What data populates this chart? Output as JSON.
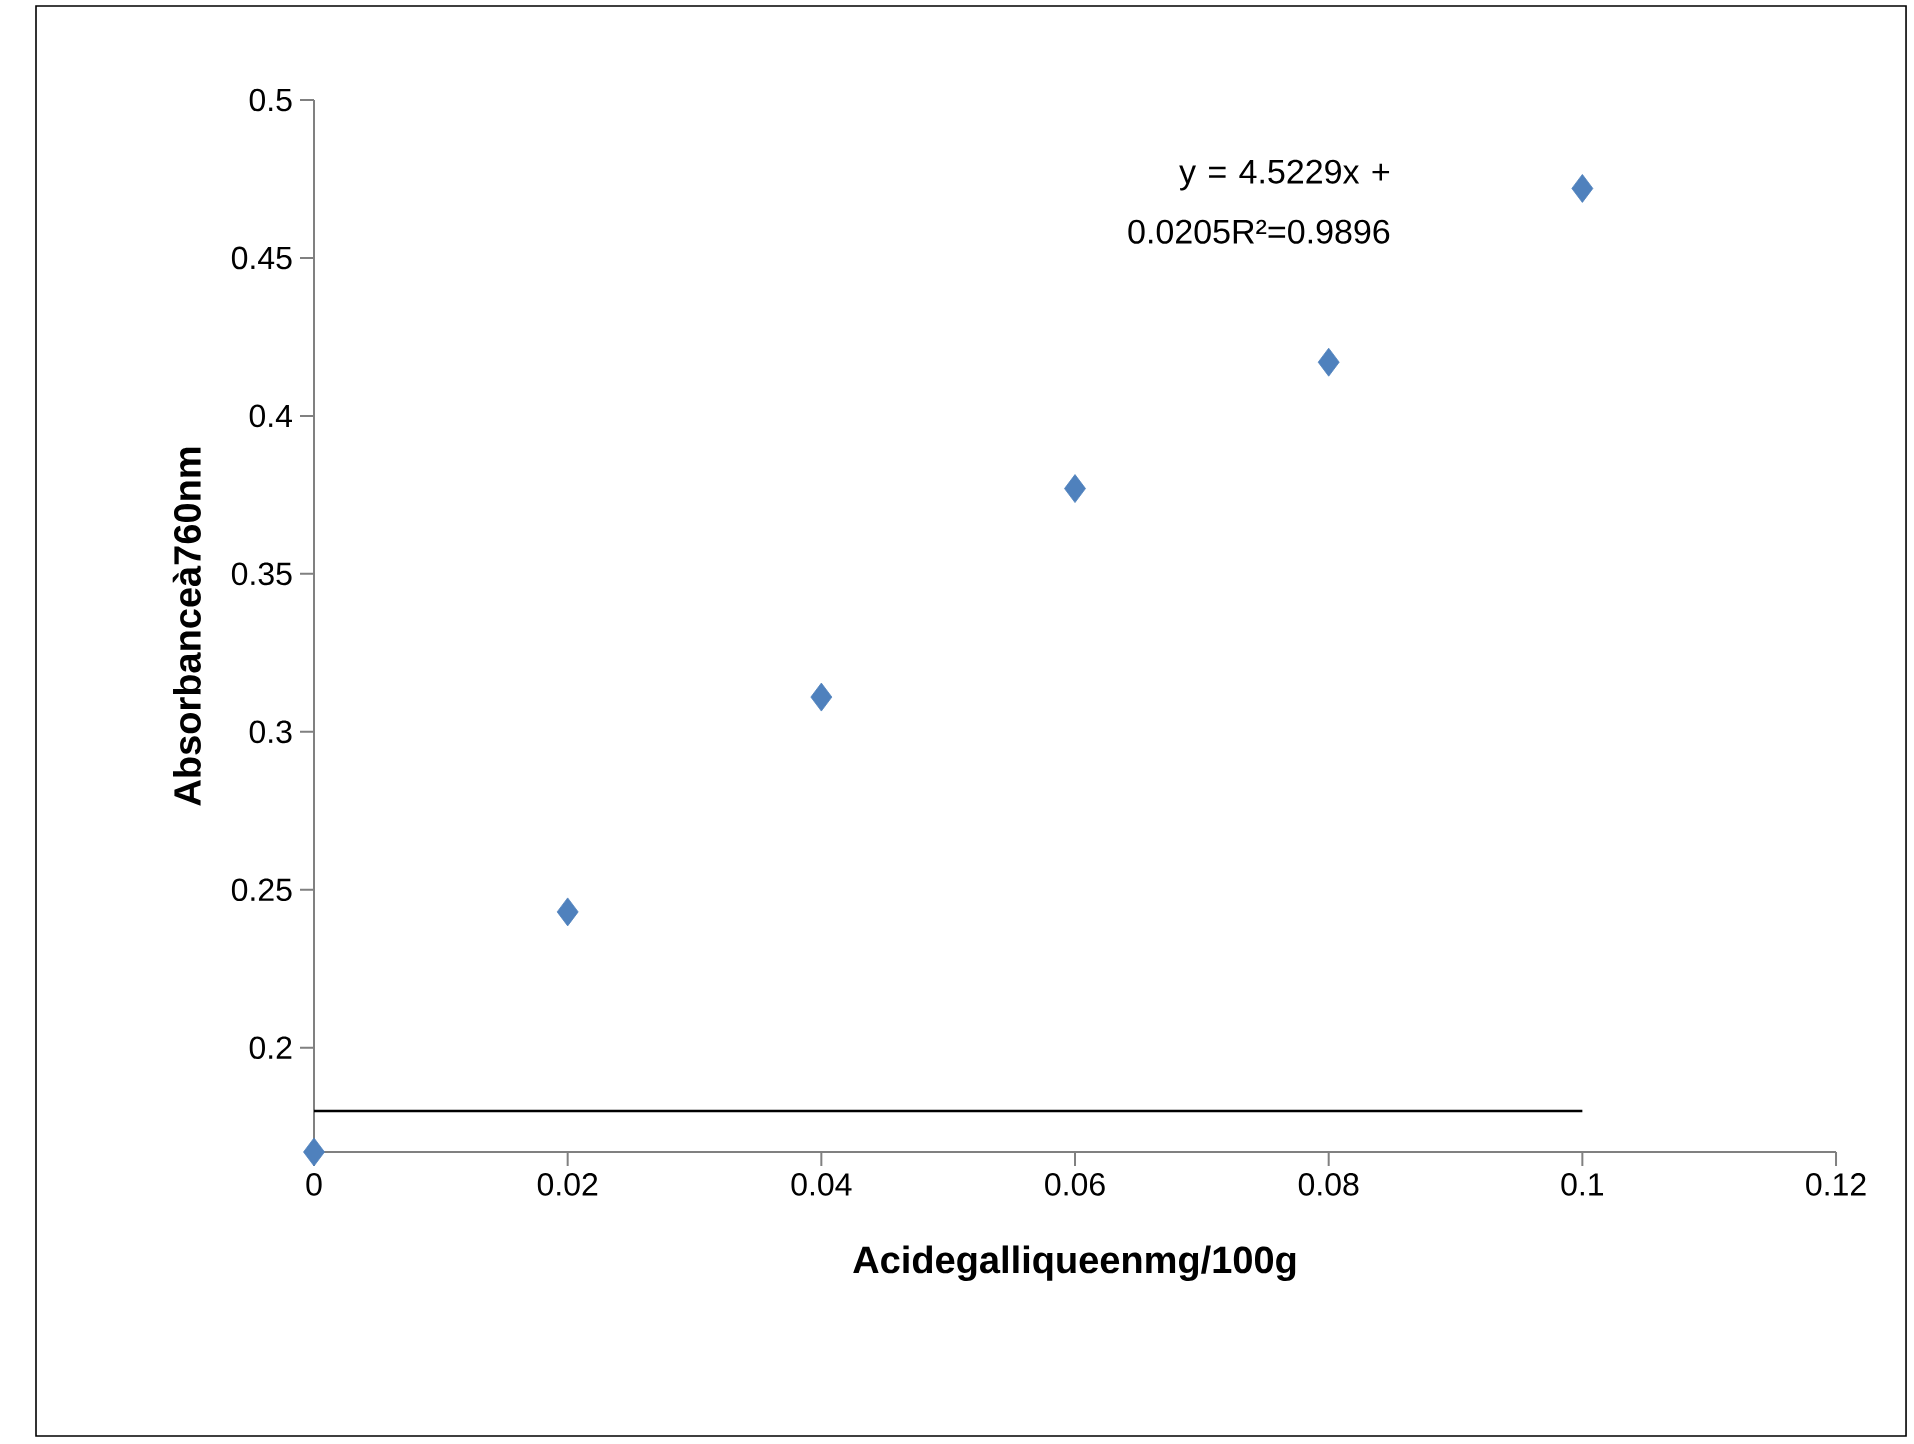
{
  "chart_data": {
    "type": "scatter",
    "xlabel": "Acidegalliqueenmg/100g",
    "ylabel": "Absorbanceà760nm",
    "x": [
      0,
      0.02,
      0.04,
      0.06,
      0.08,
      0.1
    ],
    "series": [
      {
        "color": "#4f81bd",
        "values": [
          0.167,
          0.243,
          0.311,
          0.377,
          0.417,
          0.472
        ],
        "marker": "diamond"
      },
      {
        "type": "line",
        "color": "#000000",
        "x": [
          0,
          0.1
        ],
        "values": [
          0.18,
          0.18
        ],
        "marker": "none",
        "line_style": "solid"
      }
    ],
    "xlim": [
      0,
      0.12
    ],
    "xticks": [
      0,
      0.02,
      0.04,
      0.06,
      0.08,
      0.1,
      0.12
    ],
    "ylim": [
      0.167,
      0.5
    ],
    "yticks": [
      0.2,
      0.25,
      0.3,
      0.35,
      0.4,
      0.45,
      0.5
    ],
    "annotations": [
      "y = 4.5229x + 0.0205R²=0.9896"
    ],
    "grid": false
  }
}
